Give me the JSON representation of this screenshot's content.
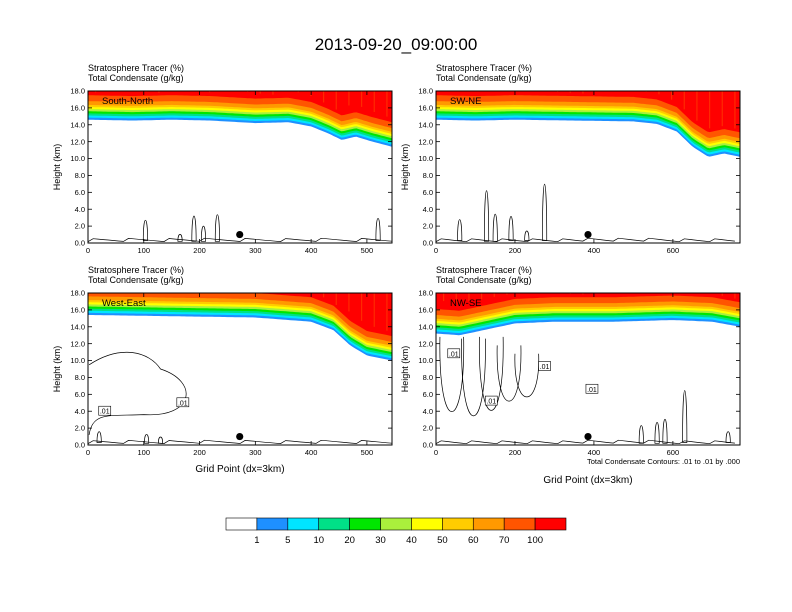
{
  "chart_data": [
    {
      "type": "heatmap",
      "title": "South-North",
      "subtitle_lines": [
        "Stratosphere Tracer   (%)",
        "Total Condensate   (g/kg)"
      ],
      "ylabel": "Height (km)",
      "xlabel": "",
      "xlim": [
        0,
        545
      ],
      "ylim": [
        0,
        18
      ],
      "xticks": [
        0,
        100,
        200,
        300,
        400,
        500
      ],
      "yticks": [
        0,
        2,
        4,
        6,
        8,
        10,
        12,
        14,
        16,
        18
      ],
      "xtick_labels": [
        "0",
        "100",
        "200",
        "300",
        "400",
        "500"
      ],
      "ytick_labels": [
        "0.0",
        "2.0",
        "4.0",
        "6.0",
        "8.0",
        "10.0",
        "12.0",
        "14.0",
        "16.0",
        "18.0"
      ],
      "marker_x": 272,
      "marker_height_km": 1.0,
      "tropopause_km": [
        [
          0,
          14.6
        ],
        [
          80,
          14.5
        ],
        [
          150,
          14.6
        ],
        [
          220,
          14.5
        ],
        [
          300,
          14.2
        ],
        [
          360,
          14.3
        ],
        [
          400,
          13.8
        ],
        [
          430,
          13.0
        ],
        [
          455,
          12.2
        ],
        [
          480,
          12.6
        ],
        [
          510,
          12.0
        ],
        [
          545,
          11.4
        ]
      ],
      "contour_labels": []
    },
    {
      "type": "heatmap",
      "title": "SW-NE",
      "subtitle_lines": [
        "Stratosphere Tracer   (%)",
        "Total Condensate   (g/kg)"
      ],
      "ylabel": "Height (km)",
      "xlabel": "",
      "xlim": [
        0,
        770
      ],
      "ylim": [
        0,
        18
      ],
      "xticks": [
        0,
        200,
        400,
        600
      ],
      "yticks": [
        0,
        2,
        4,
        6,
        8,
        10,
        12,
        14,
        16,
        18
      ],
      "xtick_labels": [
        "0",
        "200",
        "400",
        "600"
      ],
      "ytick_labels": [
        "0.0",
        "2.0",
        "4.0",
        "6.0",
        "8.0",
        "10.0",
        "12.0",
        "14.0",
        "16.0",
        "18.0"
      ],
      "marker_x": 385,
      "marker_height_km": 1.0,
      "tropopause_km": [
        [
          0,
          14.6
        ],
        [
          100,
          14.5
        ],
        [
          200,
          14.6
        ],
        [
          350,
          14.5
        ],
        [
          500,
          14.4
        ],
        [
          560,
          14.1
        ],
        [
          610,
          13.2
        ],
        [
          650,
          11.4
        ],
        [
          690,
          10.2
        ],
        [
          730,
          10.6
        ],
        [
          770,
          10.2
        ]
      ],
      "contour_labels": []
    },
    {
      "type": "heatmap",
      "title": "West-East",
      "subtitle_lines": [
        "Stratosphere Tracer   (%)",
        "Total Condensate   (g/kg)"
      ],
      "ylabel": "Height (km)",
      "xlabel": "Grid Point (dx=3km)",
      "xlim": [
        0,
        545
      ],
      "ylim": [
        0,
        18
      ],
      "xticks": [
        0,
        100,
        200,
        300,
        400,
        500
      ],
      "yticks": [
        0,
        2,
        4,
        6,
        8,
        10,
        12,
        14,
        16,
        18
      ],
      "xtick_labels": [
        "0",
        "100",
        "200",
        "300",
        "400",
        "500"
      ],
      "ytick_labels": [
        "0.0",
        "2.0",
        "4.0",
        "6.0",
        "8.0",
        "10.0",
        "12.0",
        "14.0",
        "16.0",
        "18.0"
      ],
      "marker_x": 272,
      "marker_height_km": 1.0,
      "tropopause_km": [
        [
          0,
          15.4
        ],
        [
          100,
          15.3
        ],
        [
          200,
          15.2
        ],
        [
          300,
          15.1
        ],
        [
          400,
          14.6
        ],
        [
          440,
          13.6
        ],
        [
          470,
          11.8
        ],
        [
          500,
          10.6
        ],
        [
          545,
          10.0
        ]
      ],
      "contour_labels": [
        ".01",
        ".01"
      ]
    },
    {
      "type": "heatmap",
      "title": "NW-SE",
      "subtitle_lines": [
        "Stratosphere Tracer   (%)",
        "Total Condensate   (g/kg)"
      ],
      "ylabel": "Height (km)",
      "xlabel": "Grid Point (dx=3km)",
      "xlim": [
        0,
        770
      ],
      "ylim": [
        0,
        18
      ],
      "xticks": [
        0,
        200,
        400,
        600
      ],
      "yticks": [
        0,
        2,
        4,
        6,
        8,
        10,
        12,
        14,
        16,
        18
      ],
      "xtick_labels": [
        "0",
        "200",
        "400",
        "600"
      ],
      "ytick_labels": [
        "0.0",
        "2.0",
        "4.0",
        "6.0",
        "8.0",
        "10.0",
        "12.0",
        "14.0",
        "16.0",
        "18.0"
      ],
      "marker_x": 385,
      "marker_height_km": 1.0,
      "tropopause_km": [
        [
          0,
          13.2
        ],
        [
          60,
          13.0
        ],
        [
          120,
          13.6
        ],
        [
          200,
          14.4
        ],
        [
          300,
          14.6
        ],
        [
          450,
          14.6
        ],
        [
          600,
          14.8
        ],
        [
          700,
          14.6
        ],
        [
          770,
          14.0
        ]
      ],
      "contour_labels": [
        ".01",
        ".01",
        ".01",
        ".01"
      ],
      "contour_note": "Total Condensate Contours: .01 to .01 by .000"
    }
  ],
  "figure": {
    "title": "2013-09-20_09:00:00"
  },
  "colorbar": {
    "labels": [
      "1",
      "5",
      "10",
      "20",
      "30",
      "40",
      "50",
      "60",
      "70",
      "100"
    ],
    "colors": [
      "#ffffff",
      "#1e90ff",
      "#00e5ff",
      "#00e087",
      "#00e600",
      "#aaf03c",
      "#ffff00",
      "#ffcc00",
      "#ff9900",
      "#ff5500",
      "#ff0000"
    ]
  }
}
